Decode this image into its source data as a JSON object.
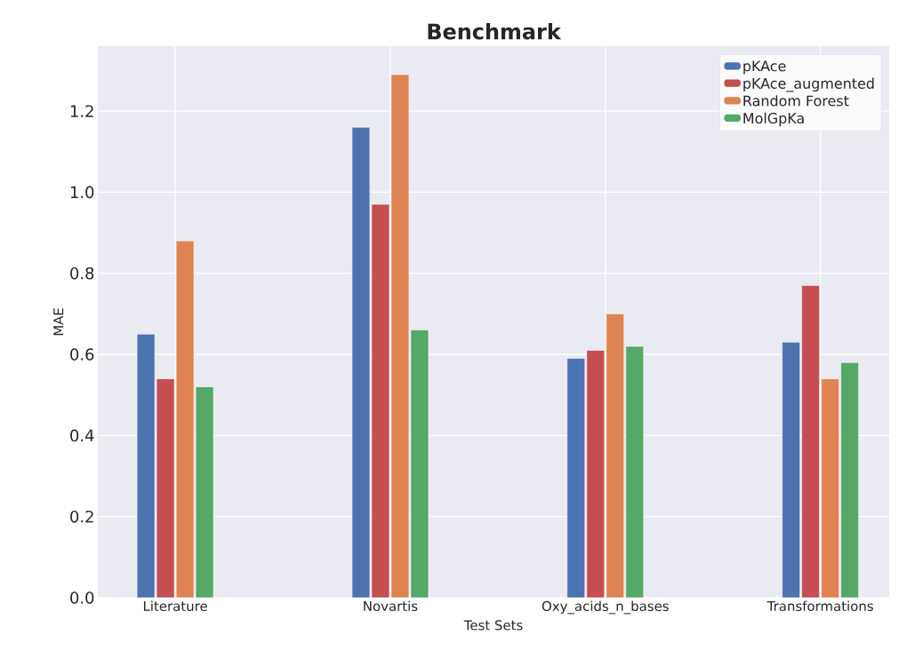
{
  "chart_data": {
    "type": "bar",
    "title": "Benchmark",
    "xlabel": "Test Sets",
    "ylabel": "MAE",
    "categories": [
      "Literature",
      "Novartis",
      "Oxy_acids_n_bases",
      "Transformations"
    ],
    "series": [
      {
        "name": "pKAce",
        "color": "#4c72b0",
        "values": [
          0.65,
          1.16,
          0.59,
          0.63
        ]
      },
      {
        "name": "pKAce_augmented",
        "color": "#c44e52",
        "values": [
          0.54,
          0.97,
          0.61,
          0.77
        ]
      },
      {
        "name": "Random Forest",
        "color": "#dd8452",
        "values": [
          0.88,
          1.29,
          0.7,
          0.54
        ]
      },
      {
        "name": "MolGpKa",
        "color": "#55a868",
        "values": [
          0.52,
          0.66,
          0.62,
          0.58
        ]
      }
    ],
    "ylim": [
      0,
      1.36
    ],
    "yticks": [
      {
        "value": 0,
        "label": "0.0"
      },
      {
        "value": 0.2,
        "label": "0.2"
      },
      {
        "value": 0.4,
        "label": "0.4"
      },
      {
        "value": 0.6,
        "label": "0.6"
      },
      {
        "value": 0.8,
        "label": "0.8"
      },
      {
        "value": 1.0,
        "label": "1.0"
      },
      {
        "value": 1.2,
        "label": "1.2"
      }
    ],
    "grid": true,
    "legend": "top right"
  }
}
